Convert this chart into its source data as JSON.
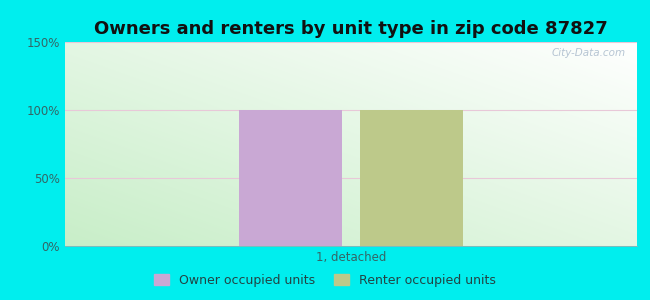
{
  "title": "Owners and renters by unit type in zip code 87827",
  "categories": [
    "1, detached"
  ],
  "owner_values": [
    100
  ],
  "renter_values": [
    100
  ],
  "owner_color": "#c9a8d4",
  "renter_color": "#bdc98a",
  "ylim": [
    0,
    150
  ],
  "yticks": [
    0,
    50,
    100,
    150
  ],
  "ytick_labels": [
    "0%",
    "50%",
    "100%",
    "150%"
  ],
  "background_color": "#00eeee",
  "watermark": "City-Data.com",
  "legend_owner": "Owner occupied units",
  "legend_renter": "Renter occupied units",
  "bar_width": 0.18,
  "title_fontsize": 13,
  "tick_fontsize": 8.5,
  "legend_fontsize": 9,
  "grid_color": "#dddddd"
}
